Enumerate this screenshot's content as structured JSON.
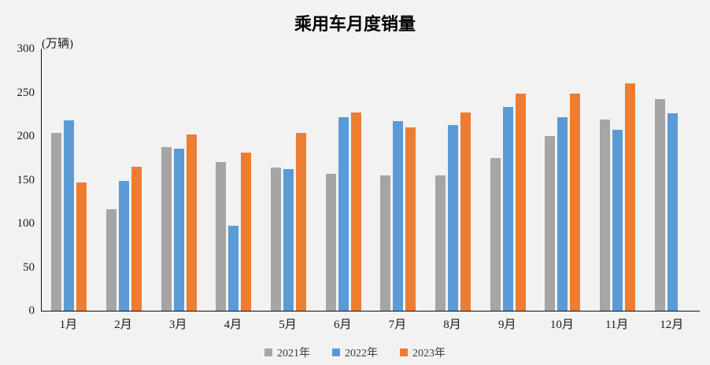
{
  "chart": {
    "title": "乘用车月度销量",
    "unit_label": "(万辆)"
  },
  "chart_data": {
    "type": "bar",
    "title": "乘用车月度销量",
    "ylabel": "(万辆)",
    "xlabel": "",
    "categories": [
      "1月",
      "2月",
      "3月",
      "4月",
      "5月",
      "6月",
      "7月",
      "8月",
      "9月",
      "10月",
      "11月",
      "12月"
    ],
    "series": [
      {
        "name": "2021年",
        "color": "#A5A5A5",
        "values": [
          204,
          116,
          187,
          170,
          164,
          157,
          155,
          155,
          175,
          200,
          219,
          242
        ]
      },
      {
        "name": "2022年",
        "color": "#5B9BD5",
        "values": [
          218,
          149,
          186,
          97,
          162,
          222,
          217,
          213,
          233,
          222,
          207,
          226
        ]
      },
      {
        "name": "2023年",
        "color": "#ED7D31",
        "values": [
          147,
          165,
          202,
          181,
          204,
          227,
          210,
          227,
          249,
          249,
          260,
          null
        ]
      }
    ],
    "ylim": [
      0,
      300
    ],
    "yticks": [
      0,
      50,
      100,
      150,
      200,
      250,
      300
    ],
    "grid": false,
    "legend_position": "bottom",
    "background_color": "#F2F2F2"
  }
}
